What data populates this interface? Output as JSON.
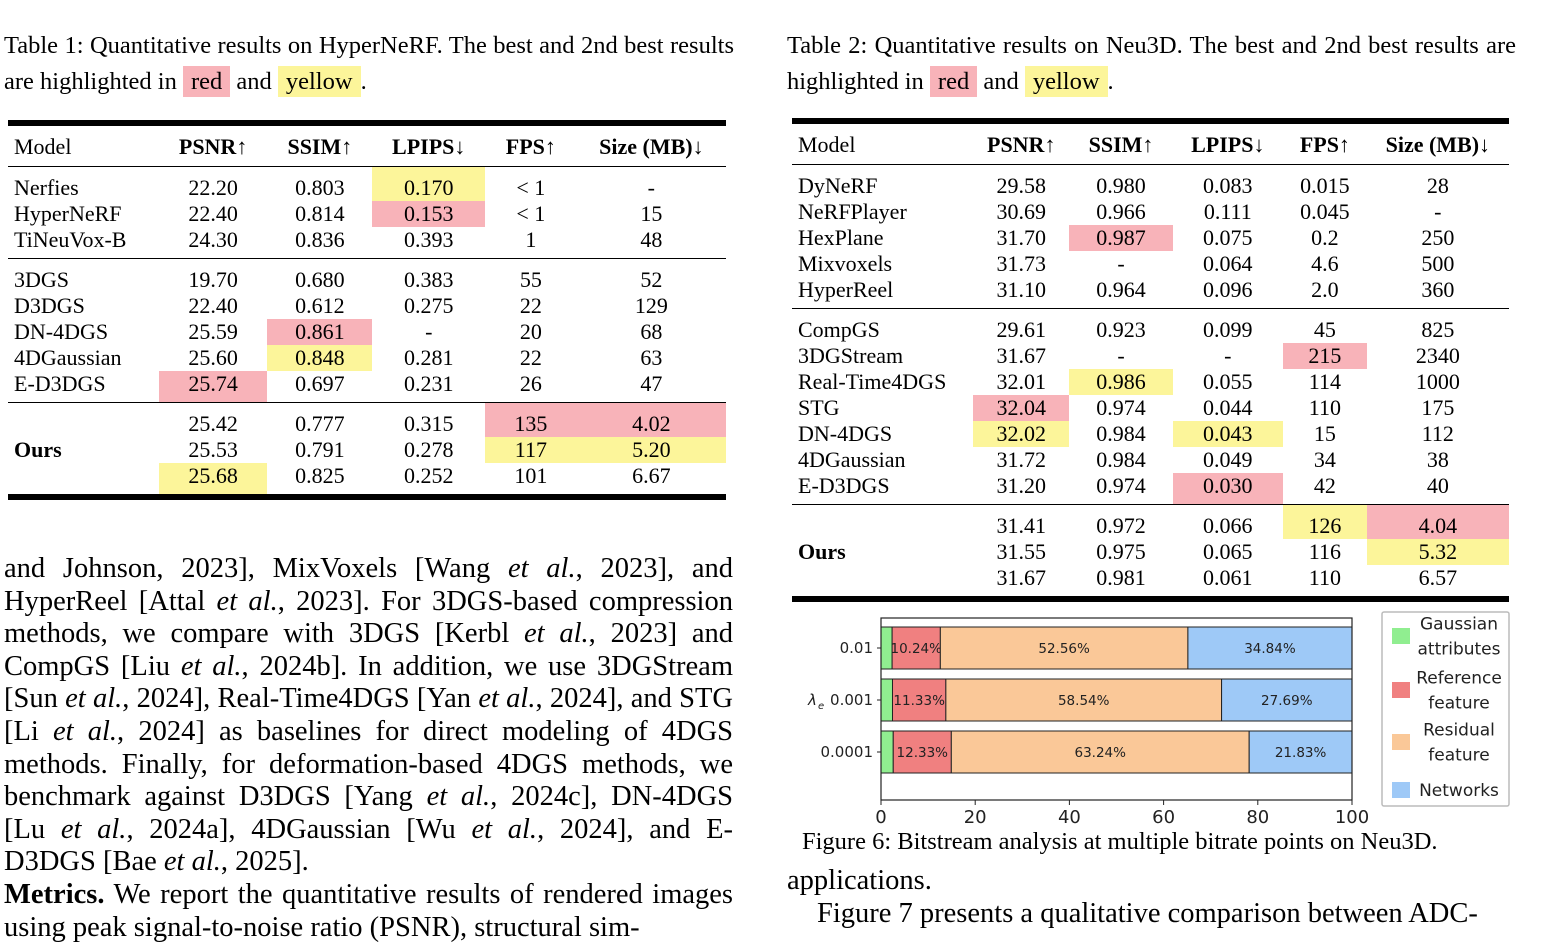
{
  "table1": {
    "caption_prefix": "Table 1: Quantitative results on HyperNeRF. The best and 2nd best results are highlighted in",
    "caption_red": "red",
    "caption_and": "and",
    "caption_yellow": "yellow",
    "caption_end": ".",
    "headers": [
      "Model",
      "PSNR↑",
      "SSIM↑",
      "LPIPS↓",
      "FPS↑",
      "Size (MB)↓"
    ],
    "groups": [
      [
        {
          "model": "Nerfies",
          "vals": [
            "22.20",
            "0.803",
            "0.170",
            "< 1",
            "-"
          ],
          "hl": [
            "",
            "",
            "yel",
            "",
            ""
          ]
        },
        {
          "model": "HyperNeRF",
          "vals": [
            "22.40",
            "0.814",
            "0.153",
            "< 1",
            "15"
          ],
          "hl": [
            "",
            "",
            "red",
            "",
            ""
          ]
        },
        {
          "model": "TiNeuVox-B",
          "vals": [
            "24.30",
            "0.836",
            "0.393",
            "1",
            "48"
          ],
          "hl": [
            "",
            "",
            "",
            "",
            ""
          ]
        }
      ],
      [
        {
          "model": "3DGS",
          "vals": [
            "19.70",
            "0.680",
            "0.383",
            "55",
            "52"
          ],
          "hl": [
            "",
            "",
            "",
            "",
            ""
          ]
        },
        {
          "model": "D3DGS",
          "vals": [
            "22.40",
            "0.612",
            "0.275",
            "22",
            "129"
          ],
          "hl": [
            "",
            "",
            "",
            "",
            ""
          ]
        },
        {
          "model": "DN-4DGS",
          "vals": [
            "25.59",
            "0.861",
            "-",
            "20",
            "68"
          ],
          "hl": [
            "",
            "red",
            "",
            "",
            ""
          ]
        },
        {
          "model": "4DGaussian",
          "vals": [
            "25.60",
            "0.848",
            "0.281",
            "22",
            "63"
          ],
          "hl": [
            "",
            "yel",
            "",
            "",
            ""
          ]
        },
        {
          "model": "E-D3DGS",
          "vals": [
            "25.74",
            "0.697",
            "0.231",
            "26",
            "47"
          ],
          "hl": [
            "red",
            "",
            "",
            "",
            ""
          ]
        }
      ],
      [
        {
          "model": "",
          "vals": [
            "25.42",
            "0.777",
            "0.315",
            "135",
            "4.02"
          ],
          "hl": [
            "",
            "",
            "",
            "red",
            "red"
          ]
        },
        {
          "model": "Ours",
          "vals": [
            "25.53",
            "0.791",
            "0.278",
            "117",
            "5.20"
          ],
          "hl": [
            "",
            "",
            "",
            "yel",
            "yel"
          ]
        },
        {
          "model": "",
          "vals": [
            "25.68",
            "0.825",
            "0.252",
            "101",
            "6.67"
          ],
          "hl": [
            "yel",
            "",
            "",
            "",
            ""
          ]
        }
      ]
    ]
  },
  "table2": {
    "caption_prefix": "Table 2: Quantitative results on Neu3D. The best and 2nd best results are highlighted in",
    "caption_red": "red",
    "caption_and": "and",
    "caption_yellow": "yellow",
    "caption_end": ".",
    "headers": [
      "Model",
      "PSNR↑",
      "SSIM↑",
      "LPIPS↓",
      "FPS↑",
      "Size (MB)↓"
    ],
    "groups": [
      [
        {
          "model": "DyNeRF",
          "vals": [
            "29.58",
            "0.980",
            "0.083",
            "0.015",
            "28"
          ],
          "hl": [
            "",
            "",
            "",
            "",
            ""
          ]
        },
        {
          "model": "NeRFPlayer",
          "vals": [
            "30.69",
            "0.966",
            "0.111",
            "0.045",
            "-"
          ],
          "hl": [
            "",
            "",
            "",
            "",
            ""
          ]
        },
        {
          "model": "HexPlane",
          "vals": [
            "31.70",
            "0.987",
            "0.075",
            "0.2",
            "250"
          ],
          "hl": [
            "",
            "red",
            "",
            "",
            ""
          ]
        },
        {
          "model": "Mixvoxels",
          "vals": [
            "31.73",
            "-",
            "0.064",
            "4.6",
            "500"
          ],
          "hl": [
            "",
            "",
            "",
            "",
            ""
          ]
        },
        {
          "model": "HyperReel",
          "vals": [
            "31.10",
            "0.964",
            "0.096",
            "2.0",
            "360"
          ],
          "hl": [
            "",
            "",
            "",
            "",
            ""
          ]
        }
      ],
      [
        {
          "model": "CompGS",
          "vals": [
            "29.61",
            "0.923",
            "0.099",
            "45",
            "825"
          ],
          "hl": [
            "",
            "",
            "",
            "",
            ""
          ]
        },
        {
          "model": "3DGStream",
          "vals": [
            "31.67",
            "-",
            "-",
            "215",
            "2340"
          ],
          "hl": [
            "",
            "",
            "",
            "red",
            ""
          ]
        },
        {
          "model": "Real-Time4DGS",
          "vals": [
            "32.01",
            "0.986",
            "0.055",
            "114",
            "1000"
          ],
          "hl": [
            "",
            "yel",
            "",
            "",
            ""
          ]
        },
        {
          "model": "STG",
          "vals": [
            "32.04",
            "0.974",
            "0.044",
            "110",
            "175"
          ],
          "hl": [
            "red",
            "",
            "",
            "",
            ""
          ]
        },
        {
          "model": "DN-4DGS",
          "vals": [
            "32.02",
            "0.984",
            "0.043",
            "15",
            "112"
          ],
          "hl": [
            "yel",
            "",
            "yel",
            "",
            ""
          ]
        },
        {
          "model": "4DGaussian",
          "vals": [
            "31.72",
            "0.984",
            "0.049",
            "34",
            "38"
          ],
          "hl": [
            "",
            "",
            "",
            "",
            ""
          ]
        },
        {
          "model": "E-D3DGS",
          "vals": [
            "31.20",
            "0.974",
            "0.030",
            "42",
            "40"
          ],
          "hl": [
            "",
            "",
            "red",
            "",
            ""
          ]
        }
      ],
      [
        {
          "model": "",
          "vals": [
            "31.41",
            "0.972",
            "0.066",
            "126",
            "4.04"
          ],
          "hl": [
            "",
            "",
            "",
            "yel",
            "red"
          ]
        },
        {
          "model": "Ours",
          "vals": [
            "31.55",
            "0.975",
            "0.065",
            "116",
            "5.32"
          ],
          "hl": [
            "",
            "",
            "",
            "",
            "yel"
          ]
        },
        {
          "model": "",
          "vals": [
            "31.67",
            "0.981",
            "0.061",
            "110",
            "6.57"
          ],
          "hl": [
            "",
            "",
            "",
            "",
            ""
          ]
        }
      ]
    ]
  },
  "body_left": {
    "p1": [
      {
        "t": "and Johnson, 2023], MixVoxels [Wang "
      },
      {
        "t": "et al.",
        "i": true
      },
      {
        "t": ", 2023], and HyperReel [Attal "
      },
      {
        "t": "et al.",
        "i": true
      },
      {
        "t": ", 2023].  For 3DGS-based compression methods, we compare with 3DGS [Kerbl "
      },
      {
        "t": "et al.",
        "i": true
      },
      {
        "t": ", 2023] and CompGS [Liu "
      },
      {
        "t": "et al.",
        "i": true
      },
      {
        "t": ", 2024b]. In addition, we use 3DGStream [Sun "
      },
      {
        "t": "et al.",
        "i": true
      },
      {
        "t": ", 2024], Real-Time4DGS [Yan "
      },
      {
        "t": "et al.",
        "i": true
      },
      {
        "t": ", 2024], and STG [Li "
      },
      {
        "t": "et al.",
        "i": true
      },
      {
        "t": ", 2024] as baselines for direct modeling of 4DGS methods. Finally, for deformation-based 4DGS methods, we benchmark against D3DGS [Yang "
      },
      {
        "t": "et al.",
        "i": true
      },
      {
        "t": ", 2024c], DN-4DGS [Lu "
      },
      {
        "t": "et al.",
        "i": true
      },
      {
        "t": ", 2024a], 4DGaussian [Wu "
      },
      {
        "t": "et al.",
        "i": true
      },
      {
        "t": ", 2024], and E-D3DGS [Bae "
      },
      {
        "t": "et al.",
        "i": true
      },
      {
        "t": ", 2025]."
      }
    ],
    "metrics_bold": "Metrics.",
    "metrics_text": " We report the quantitative results of rendered images using peak signal-to-noise ratio (PSNR), structural sim-"
  },
  "figure6": {
    "caption": "Figure 6: Bitstream analysis at multiple bitrate points on Neu3D.",
    "ylabel_symbol": "λ",
    "ylabel_sub": "e",
    "chart_data": {
      "type": "bar",
      "orientation": "horizontal",
      "stacked": true,
      "categories": [
        "0.01",
        "0.001",
        "0.0001"
      ],
      "series": [
        {
          "name": "Gaussian attributes",
          "values": [
            2.36,
            2.44,
            2.6
          ],
          "color": "#90ee90"
        },
        {
          "name": "Reference feature",
          "values": [
            10.24,
            11.33,
            12.33
          ],
          "color": "#f08080"
        },
        {
          "name": "Residual feature",
          "values": [
            52.56,
            58.54,
            63.24
          ],
          "color": "#fac898"
        },
        {
          "name": "Networks",
          "values": [
            34.84,
            27.69,
            21.83
          ],
          "color": "#9ec9f7"
        }
      ],
      "labels": [
        [
          "",
          "10.24%",
          "52.56%",
          "34.84%"
        ],
        [
          "",
          "11.33%",
          "58.54%",
          "27.69%"
        ],
        [
          "",
          "12.33%",
          "63.24%",
          "21.83%"
        ]
      ],
      "xlim": [
        0,
        100
      ],
      "xticks": [
        "0",
        "20",
        "40",
        "60",
        "80",
        "100"
      ],
      "legend": [
        {
          "lines": [
            "Gaussian",
            "attributes"
          ],
          "color": "#90ee90"
        },
        {
          "lines": [
            "Reference",
            "feature"
          ],
          "color": "#f08080"
        },
        {
          "lines": [
            "Residual",
            "feature"
          ],
          "color": "#fac898"
        },
        {
          "lines": [
            "Networks"
          ],
          "color": "#9ec9f7"
        }
      ],
      "legend_position": "right"
    }
  },
  "body_right": {
    "line1": "applications.",
    "line2": "Figure 7 presents a qualitative comparison between ADC-"
  }
}
